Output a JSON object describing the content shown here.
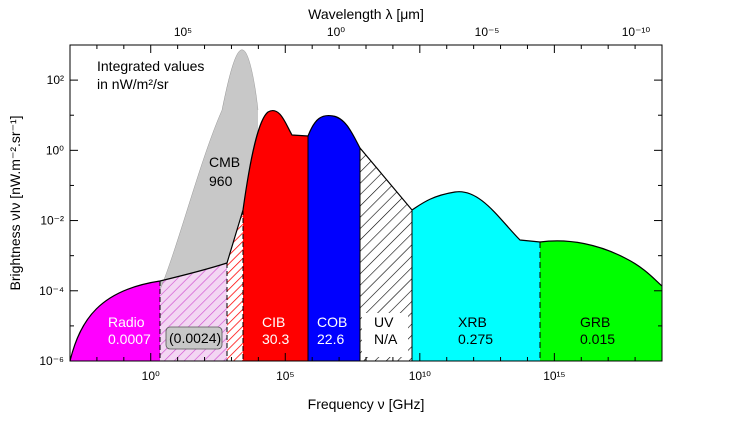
{
  "chart_data": {
    "type": "area",
    "title": "",
    "xlabel": "Frequency ν [GHz]",
    "ylabel": "Brightness νIν  [nW.m⁻².sr⁻¹]",
    "top_xlabel": "Wavelength λ [μm]",
    "x_scale": "log",
    "y_scale": "log",
    "xlim": [
      0.001,
      1e+19
    ],
    "ylim": [
      1e-06,
      1000.0
    ],
    "x_ticks": [
      "10⁰",
      "10⁵",
      "10¹⁰",
      "10¹⁵"
    ],
    "top_ticks": [
      "10⁵",
      "10⁰",
      "10⁻⁵",
      "10⁻¹⁰"
    ],
    "y_ticks": [
      "10⁻⁶",
      "10⁻⁴",
      "10⁻²",
      "10⁰",
      "10²"
    ],
    "annotation": {
      "line1": "Integrated values",
      "line2": "in nW/m²/sr"
    },
    "bands": [
      {
        "name": "Radio",
        "value": "0.0007",
        "color": "#ff00ff",
        "x_range": [
          0.001,
          0.5
        ]
      },
      {
        "name": "",
        "value": "(0.0024)",
        "color": "#e099e0",
        "x_range": [
          0.5,
          100
        ]
      },
      {
        "name": "CMB",
        "value": "960",
        "color": "#c8c8c8",
        "x_range": [
          1,
          1000
        ]
      },
      {
        "name": "CIB",
        "value": "30.3",
        "color": "#ff0000",
        "x_range": [
          300,
          20000
        ]
      },
      {
        "name": "COB",
        "value": "22.6",
        "color": "#0000ff",
        "x_range": [
          20000,
          1000000
        ]
      },
      {
        "name": "UV",
        "value": "N/A",
        "color": "#ffffff",
        "x_range": [
          1000000,
          50000000.0
        ]
      },
      {
        "name": "XRB",
        "value": "0.275",
        "color": "#00ffff",
        "x_range": [
          50000000.0,
          10000000000000.0
        ]
      },
      {
        "name": "GRB",
        "value": "0.015",
        "color": "#00ff00",
        "x_range": [
          10000000000000.0,
          1e+19
        ]
      }
    ],
    "sed_points": [
      {
        "x": 0.001,
        "y": 2e-06
      },
      {
        "x": 0.01,
        "y": 5e-05
      },
      {
        "x": 0.5,
        "y": 0.00025
      },
      {
        "x": 30,
        "y": 0.0006
      },
      {
        "x": 200,
        "y": 0.002
      },
      {
        "x": 1000,
        "y": 12
      },
      {
        "x": 10000,
        "y": 3
      },
      {
        "x": 100000,
        "y": 8
      },
      {
        "x": 10000000,
        "y": 0.2
      },
      {
        "x": 50000000,
        "y": 0.02
      },
      {
        "x": 10000000000.0,
        "y": 0.06
      },
      {
        "x": 1000000000000.0,
        "y": 0.0016
      },
      {
        "x": 1000000000000000.0,
        "y": 0.0015
      },
      {
        "x": 1e+19,
        "y": 8e-05
      }
    ]
  }
}
